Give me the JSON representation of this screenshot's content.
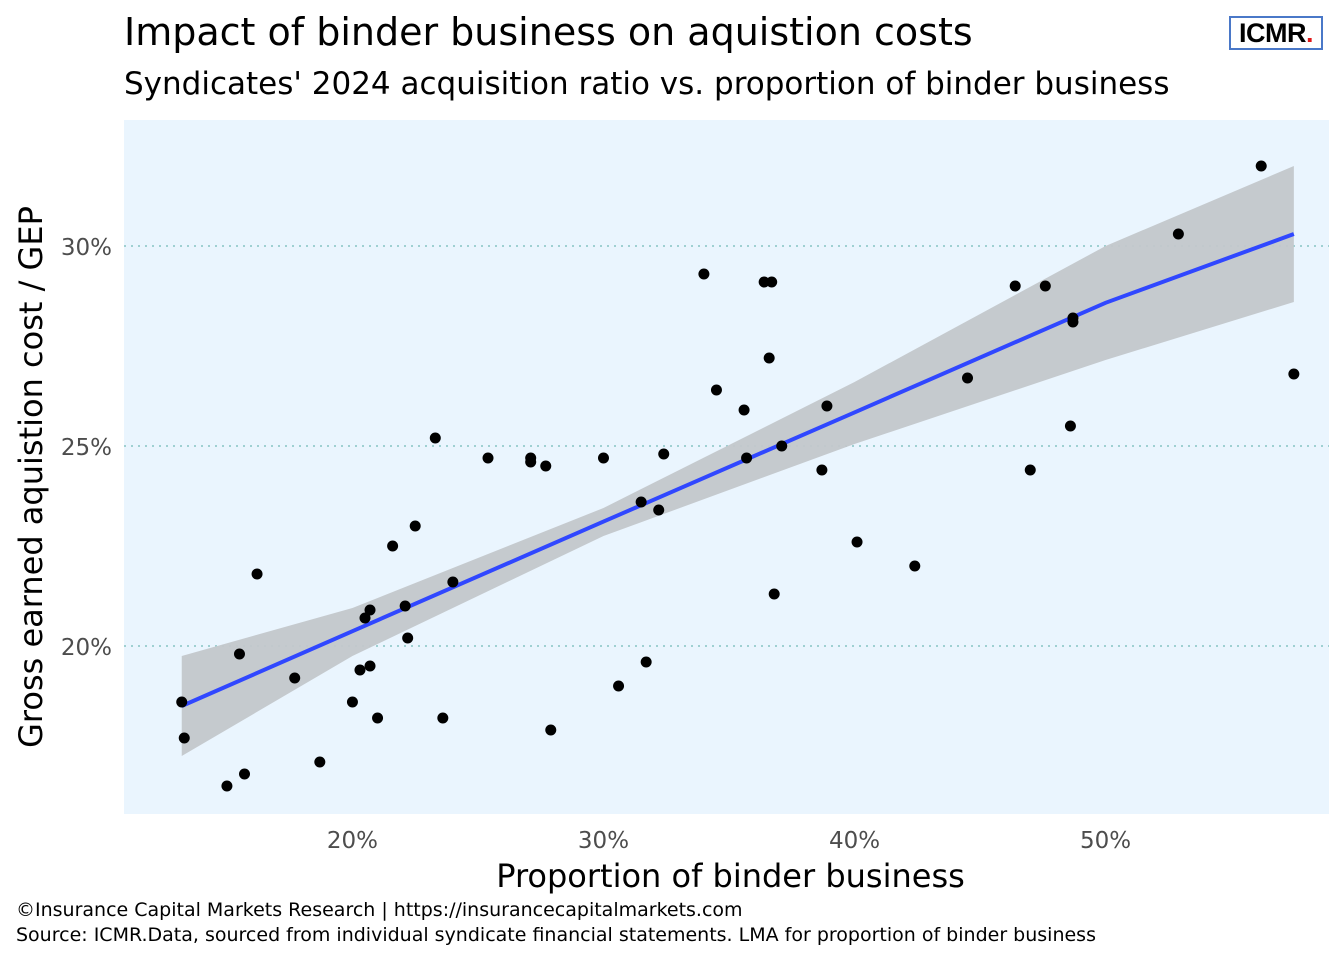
{
  "title": "Impact of binder business on aquistion costs",
  "subtitle": "Syndicates' 2024 acquisition ratio vs. proportion of binder business",
  "logo": {
    "text": "ICMR",
    "dot": "."
  },
  "footer": {
    "copyright": "©Insurance Capital Markets Research | https://insurancecapitalmarkets.com",
    "source": "Source: ICMR.Data, sourced from individual syndicate financial statements. LMA for proportion of binder business"
  },
  "chart_data": {
    "type": "scatter",
    "xlabel": "Proportion of binder business",
    "ylabel": "Gross earned aquistion cost / GEP",
    "xlim": [
      0.109,
      0.589
    ],
    "ylim": [
      0.158,
      0.3315
    ],
    "x_ticks": [
      0.2,
      0.3,
      0.4,
      0.5
    ],
    "x_tick_labels": [
      "20%",
      "30%",
      "40%",
      "50%"
    ],
    "y_ticks": [
      0.2,
      0.25,
      0.3
    ],
    "y_tick_labels": [
      "20%",
      "25%",
      "30%"
    ],
    "grid": "horizontal dotted",
    "points": [
      [
        0.132,
        0.186
      ],
      [
        0.133,
        0.177
      ],
      [
        0.15,
        0.165
      ],
      [
        0.155,
        0.198
      ],
      [
        0.157,
        0.168
      ],
      [
        0.162,
        0.218
      ],
      [
        0.177,
        0.192
      ],
      [
        0.187,
        0.171
      ],
      [
        0.2,
        0.186
      ],
      [
        0.203,
        0.194
      ],
      [
        0.205,
        0.207
      ],
      [
        0.207,
        0.209
      ],
      [
        0.207,
        0.195
      ],
      [
        0.21,
        0.182
      ],
      [
        0.216,
        0.225
      ],
      [
        0.221,
        0.21
      ],
      [
        0.222,
        0.202
      ],
      [
        0.225,
        0.23
      ],
      [
        0.233,
        0.252
      ],
      [
        0.236,
        0.182
      ],
      [
        0.24,
        0.216
      ],
      [
        0.254,
        0.247
      ],
      [
        0.271,
        0.247
      ],
      [
        0.271,
        0.246
      ],
      [
        0.277,
        0.245
      ],
      [
        0.279,
        0.179
      ],
      [
        0.3,
        0.247
      ],
      [
        0.306,
        0.19
      ],
      [
        0.315,
        0.236
      ],
      [
        0.317,
        0.196
      ],
      [
        0.322,
        0.234
      ],
      [
        0.324,
        0.248
      ],
      [
        0.34,
        0.293
      ],
      [
        0.345,
        0.264
      ],
      [
        0.356,
        0.259
      ],
      [
        0.357,
        0.247
      ],
      [
        0.364,
        0.291
      ],
      [
        0.366,
        0.272
      ],
      [
        0.367,
        0.291
      ],
      [
        0.368,
        0.213
      ],
      [
        0.371,
        0.25
      ],
      [
        0.387,
        0.244
      ],
      [
        0.389,
        0.26
      ],
      [
        0.401,
        0.226
      ],
      [
        0.424,
        0.22
      ],
      [
        0.445,
        0.267
      ],
      [
        0.464,
        0.29
      ],
      [
        0.47,
        0.244
      ],
      [
        0.476,
        0.29
      ],
      [
        0.486,
        0.255
      ],
      [
        0.487,
        0.282
      ],
      [
        0.487,
        0.281
      ],
      [
        0.529,
        0.303
      ],
      [
        0.562,
        0.32
      ],
      [
        0.575,
        0.268
      ]
    ],
    "trend": {
      "x": [
        0.132,
        0.2,
        0.3,
        0.4,
        0.5,
        0.575
      ],
      "y": [
        0.185,
        0.2037,
        0.2311,
        0.2584,
        0.2858,
        0.303
      ],
      "lower": [
        0.1725,
        0.1975,
        0.2275,
        0.2505,
        0.2715,
        0.286
      ],
      "upper": [
        0.1975,
        0.2095,
        0.2345,
        0.266,
        0.3,
        0.32
      ]
    },
    "colors": {
      "panel": "#eaf5fe",
      "grid": "#9fd0d2",
      "point": "#000000",
      "trend": "#3047ff",
      "band": "#c3c7cb",
      "tick_label": "#4d4d4d"
    }
  }
}
